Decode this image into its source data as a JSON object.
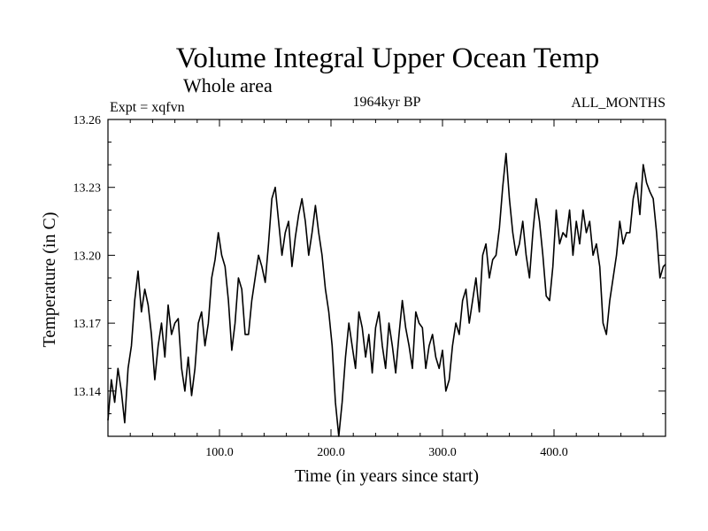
{
  "chart_data": {
    "type": "line",
    "title": "Volume Integral Upper Ocean Temp",
    "subtitle": "Whole area",
    "experiment": "Expt = xqfvn",
    "period": "1964kyr BP",
    "months": "ALL_MONTHS",
    "xlabel": "Time (in years since start)",
    "ylabel": "Temperature (in C)",
    "xlim": [
      0,
      500
    ],
    "ylim": [
      13.12,
      13.26
    ],
    "xticks": [
      {
        "value": 100,
        "label": "100.0"
      },
      {
        "value": 200,
        "label": "200.0"
      },
      {
        "value": 300,
        "label": "300.0"
      },
      {
        "value": 400,
        "label": "400.0"
      }
    ],
    "yticks": [
      {
        "value": 13.14,
        "label": "13.14"
      },
      {
        "value": 13.17,
        "label": "13.17"
      },
      {
        "value": 13.2,
        "label": "13.20"
      },
      {
        "value": 13.23,
        "label": "13.23"
      },
      {
        "value": 13.26,
        "label": "13.26"
      }
    ],
    "series": [
      {
        "name": "Temperature",
        "color": "#000000",
        "x": [
          0,
          3,
          6,
          9,
          12,
          15,
          18,
          21,
          24,
          27,
          30,
          33,
          36,
          39,
          42,
          45,
          48,
          51,
          54,
          57,
          60,
          63,
          66,
          69,
          72,
          75,
          78,
          81,
          84,
          87,
          90,
          93,
          96,
          99,
          102,
          105,
          108,
          111,
          114,
          117,
          120,
          123,
          126,
          129,
          132,
          135,
          138,
          141,
          144,
          147,
          150,
          153,
          156,
          159,
          162,
          165,
          168,
          171,
          174,
          177,
          180,
          183,
          186,
          189,
          192,
          195,
          198,
          201,
          204,
          207,
          210,
          213,
          216,
          219,
          222,
          225,
          228,
          231,
          234,
          237,
          240,
          243,
          246,
          249,
          252,
          255,
          258,
          261,
          264,
          267,
          270,
          273,
          276,
          279,
          282,
          285,
          288,
          291,
          294,
          297,
          300,
          303,
          306,
          309,
          312,
          315,
          318,
          321,
          324,
          327,
          330,
          333,
          336,
          339,
          342,
          345,
          348,
          351,
          354,
          357,
          360,
          363,
          366,
          369,
          372,
          375,
          378,
          381,
          384,
          387,
          390,
          393,
          396,
          399,
          402,
          405,
          408,
          411,
          414,
          417,
          420,
          423,
          426,
          429,
          432,
          435,
          438,
          441,
          444,
          447,
          450,
          453,
          456,
          459,
          462,
          465,
          468,
          471,
          474,
          477,
          480,
          483,
          486,
          489,
          492,
          495,
          498,
          500
        ],
        "values": [
          13.127,
          13.145,
          13.135,
          13.15,
          13.14,
          13.126,
          13.15,
          13.16,
          13.18,
          13.193,
          13.175,
          13.185,
          13.178,
          13.165,
          13.145,
          13.16,
          13.17,
          13.155,
          13.178,
          13.165,
          13.17,
          13.172,
          13.15,
          13.14,
          13.155,
          13.138,
          13.15,
          13.17,
          13.175,
          13.16,
          13.17,
          13.19,
          13.198,
          13.21,
          13.2,
          13.195,
          13.18,
          13.158,
          13.17,
          13.19,
          13.185,
          13.165,
          13.165,
          13.18,
          13.19,
          13.2,
          13.195,
          13.188,
          13.205,
          13.225,
          13.23,
          13.215,
          13.2,
          13.21,
          13.215,
          13.195,
          13.208,
          13.218,
          13.225,
          13.215,
          13.2,
          13.21,
          13.222,
          13.21,
          13.2,
          13.185,
          13.175,
          13.16,
          13.135,
          13.12,
          13.135,
          13.155,
          13.17,
          13.16,
          13.15,
          13.175,
          13.168,
          13.155,
          13.165,
          13.148,
          13.168,
          13.175,
          13.16,
          13.15,
          13.17,
          13.16,
          13.148,
          13.165,
          13.18,
          13.168,
          13.16,
          13.15,
          13.175,
          13.17,
          13.168,
          13.15,
          13.16,
          13.165,
          13.155,
          13.15,
          13.158,
          13.14,
          13.145,
          13.16,
          13.17,
          13.165,
          13.18,
          13.185,
          13.17,
          13.18,
          13.19,
          13.175,
          13.2,
          13.205,
          13.19,
          13.198,
          13.2,
          13.212,
          13.23,
          13.245,
          13.225,
          13.21,
          13.2,
          13.205,
          13.215,
          13.2,
          13.19,
          13.21,
          13.225,
          13.215,
          13.2,
          13.182,
          13.18,
          13.195,
          13.22,
          13.205,
          13.21,
          13.208,
          13.22,
          13.2,
          13.215,
          13.205,
          13.22,
          13.21,
          13.215,
          13.2,
          13.205,
          13.195,
          13.17,
          13.165,
          13.18,
          13.19,
          13.2,
          13.215,
          13.205,
          13.21,
          13.21,
          13.225,
          13.232,
          13.218,
          13.24,
          13.232,
          13.228,
          13.225,
          13.21,
          13.19,
          13.195,
          13.196
        ]
      }
    ]
  }
}
